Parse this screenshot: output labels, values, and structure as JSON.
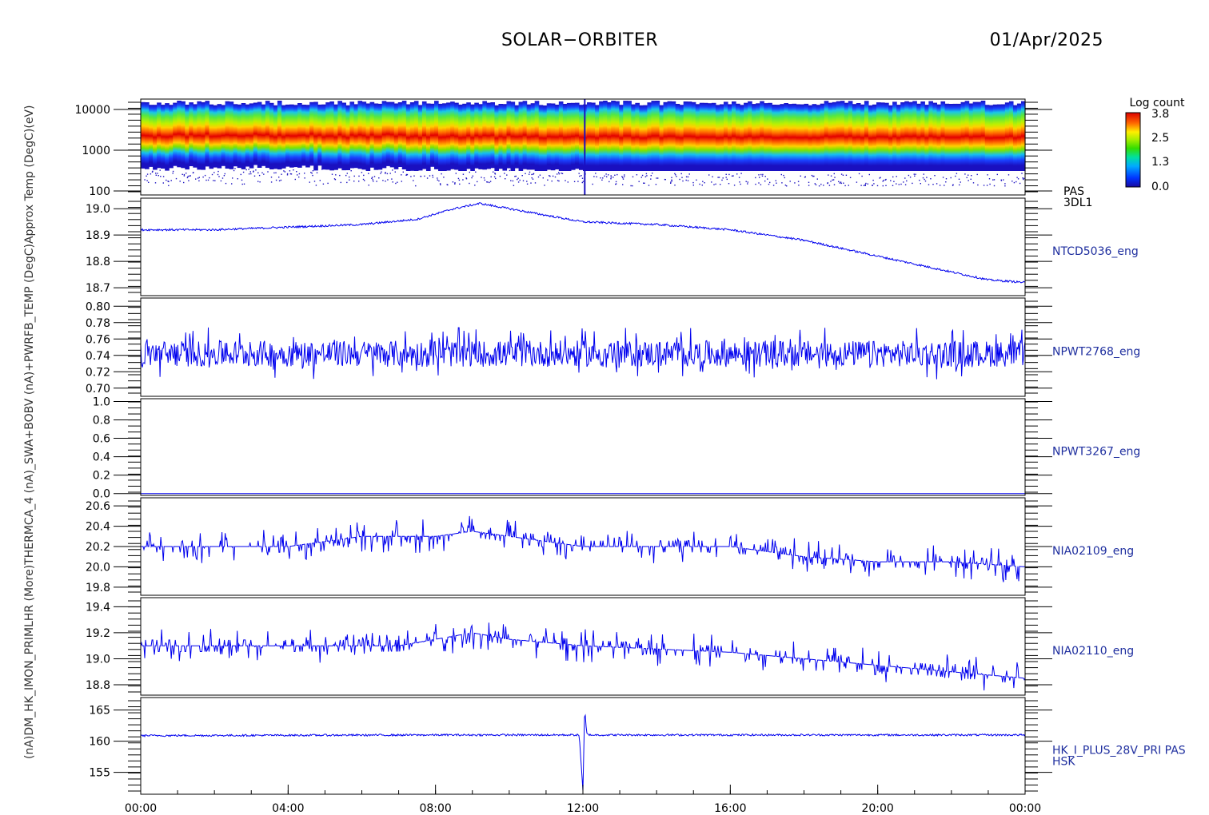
{
  "header": {
    "title": "SOLAR−ORBITER",
    "date": "01/Apr/2025"
  },
  "left_axis_text": "(nA)DM_HK_IMON_PRIMLHR (More)THERMCA_4 (nA)_SWA+BOBV (nA)+PWRFB_TEMP (DegC)Approx Temp (DegC)(eV)",
  "colorbar": {
    "title": "Log count",
    "ticks": [
      "3.8",
      "2.5",
      "1.3",
      "0.0"
    ],
    "range": [
      0.0,
      3.8
    ]
  },
  "x_axis": {
    "ticks": [
      "00:00",
      "04:00",
      "08:00",
      "12:00",
      "16:00",
      "20:00",
      "00:00"
    ],
    "range_hours": [
      0,
      24
    ]
  },
  "chart_data": [
    {
      "type": "heatmap",
      "name": "PAS 3DL1",
      "right_label": [
        "PAS",
        "3DL1"
      ],
      "y_log": true,
      "y_ticks": [
        "10000",
        "1000",
        "100"
      ],
      "y_tick_values": [
        10000,
        1000,
        100
      ],
      "ylim": [
        80,
        18000
      ],
      "peak_energy_eV": {
        "hours": [
          0,
          4,
          8,
          9.6,
          11.9,
          12.1,
          13,
          16,
          20,
          24
        ],
        "values": [
          2300,
          2400,
          2100,
          2050,
          2000,
          1500,
          1500,
          1450,
          1550,
          1500
        ]
      },
      "colorbar": "Log count"
    },
    {
      "type": "line",
      "name": "NTCD5036_eng",
      "right_label": [
        "NTCD5036_eng"
      ],
      "y_ticks": [
        "19.0",
        "18.9",
        "18.8",
        "18.7"
      ],
      "y_tick_values": [
        19.0,
        18.9,
        18.8,
        18.7
      ],
      "ylim": [
        18.67,
        19.04
      ],
      "x": [
        0,
        2,
        4,
        6,
        7.5,
        8.5,
        9.2,
        10,
        12,
        14,
        15,
        16,
        18,
        20,
        22,
        23,
        24
      ],
      "values": [
        18.92,
        18.92,
        18.93,
        18.94,
        18.96,
        19.0,
        19.02,
        19.0,
        18.95,
        18.94,
        18.93,
        18.92,
        18.88,
        18.82,
        18.76,
        18.73,
        18.72
      ]
    },
    {
      "type": "line",
      "name": "NPWT2768_eng",
      "right_label": [
        "NPWT2768_eng"
      ],
      "y_ticks": [
        "0.80",
        "0.78",
        "0.76",
        "0.74",
        "0.72",
        "0.70"
      ],
      "y_tick_values": [
        0.8,
        0.78,
        0.76,
        0.74,
        0.72,
        0.7
      ],
      "ylim": [
        0.69,
        0.81
      ],
      "x": [
        0,
        24
      ],
      "values": [
        0.742,
        0.742
      ],
      "noise_amplitude": 0.02
    },
    {
      "type": "line",
      "name": "NPWT3267_eng",
      "right_label": [
        "NPWT3267_eng"
      ],
      "y_ticks": [
        "1.0",
        "0.8",
        "0.6",
        "0.4",
        "0.2",
        "0.0"
      ],
      "y_tick_values": [
        1.0,
        0.8,
        0.6,
        0.4,
        0.2,
        0.0
      ],
      "ylim": [
        -0.02,
        1.03
      ],
      "x": [
        0,
        24
      ],
      "values": [
        0.0,
        0.0
      ]
    },
    {
      "type": "line",
      "name": "NIA02109_eng",
      "right_label": [
        "NIA02109_eng"
      ],
      "y_ticks": [
        "20.6",
        "20.4",
        "20.2",
        "20.0",
        "19.8"
      ],
      "y_tick_values": [
        20.6,
        20.4,
        20.2,
        20.0,
        19.8
      ],
      "ylim": [
        19.72,
        20.68
      ],
      "x": [
        0,
        2,
        4,
        6,
        8,
        9,
        10,
        12,
        14,
        16,
        18,
        20,
        22,
        24
      ],
      "values": [
        20.2,
        20.2,
        20.2,
        20.3,
        20.3,
        20.35,
        20.3,
        20.2,
        20.2,
        20.2,
        20.1,
        20.05,
        20.05,
        20.0
      ]
    },
    {
      "type": "line",
      "name": "NIA02110_eng",
      "right_label": [
        "NIA02110_eng"
      ],
      "y_ticks": [
        "19.4",
        "19.2",
        "19.0",
        "18.8"
      ],
      "y_tick_values": [
        19.4,
        19.2,
        19.0,
        18.8
      ],
      "ylim": [
        18.72,
        19.47
      ],
      "x": [
        0,
        4,
        7,
        8,
        9,
        10,
        12,
        16,
        18,
        20,
        22,
        24
      ],
      "values": [
        19.1,
        19.1,
        19.1,
        19.15,
        19.2,
        19.15,
        19.1,
        19.05,
        19.0,
        18.95,
        18.9,
        18.85
      ]
    },
    {
      "type": "line",
      "name": "HK_I_PLUS_28V_PRI PAS HSK",
      "right_label": [
        "HK_I_PLUS_28V_PRI PAS",
        "HSK"
      ],
      "y_ticks": [
        "165",
        "160",
        "155"
      ],
      "y_tick_values": [
        165,
        160,
        155
      ],
      "ylim": [
        151.5,
        167
      ],
      "x": [
        0,
        8,
        11.9,
        12.0,
        12.05,
        12.1,
        12.2,
        16,
        24
      ],
      "values": [
        160.9,
        161.0,
        161.0,
        152.0,
        165.5,
        161.2,
        161.0,
        161.0,
        161.0
      ]
    }
  ]
}
